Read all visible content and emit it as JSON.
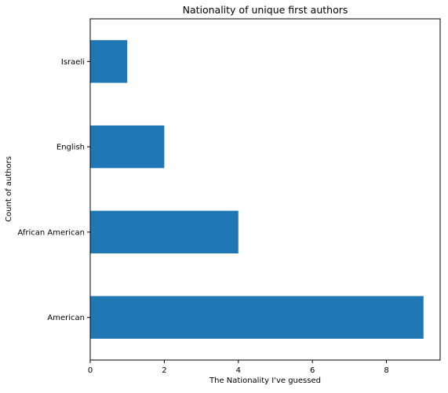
{
  "chart_data": {
    "type": "bar",
    "orientation": "horizontal",
    "title": "Nationality of unique first authors",
    "xlabel": "The Nationality I've guessed",
    "ylabel": "Count of authors",
    "categories": [
      "American",
      "African American",
      "English",
      "Israeli"
    ],
    "values": [
      9,
      4,
      2,
      1
    ],
    "xlim": [
      0,
      9.45
    ],
    "xticks": [
      0,
      2,
      4,
      6,
      8
    ],
    "grid": false,
    "legend": "none",
    "bar_color": "#1f77b4"
  }
}
